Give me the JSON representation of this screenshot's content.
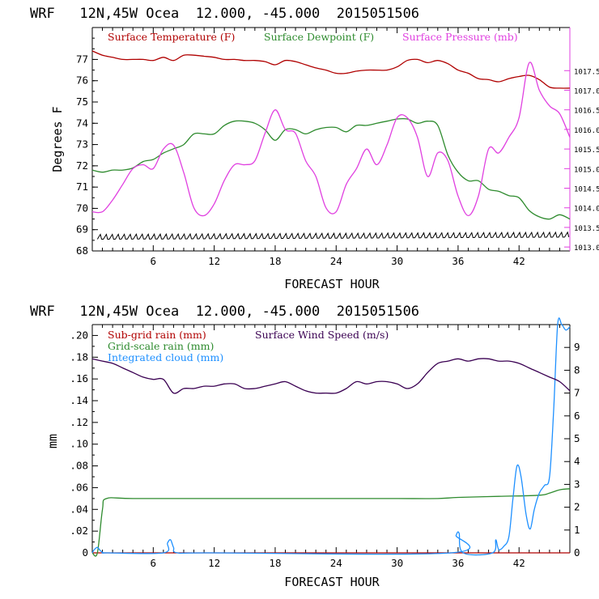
{
  "chart_data": [
    {
      "type": "line",
      "title": "WRF   12N,45W Ocea  12.000, -45.000  2015051506",
      "xlabel": "FORECAST HOUR",
      "ylabel": "Degrees F",
      "xlim": [
        0,
        47
      ],
      "ylim": [
        68,
        78.5
      ],
      "xticks": [
        6,
        12,
        18,
        24,
        30,
        36,
        42
      ],
      "yticks": [
        68,
        69,
        70,
        71,
        72,
        73,
        74,
        75,
        76,
        77
      ],
      "y2label": "",
      "y2lim": [
        1012.9,
        1018.6
      ],
      "y2ticks": [
        "1013.0",
        "1013.5",
        "1014.0",
        "1014.5",
        "1015.0",
        "1015.5",
        "1016.0",
        "1016.5",
        "1017.0",
        "1017.5"
      ],
      "legend_placement": "top",
      "series": [
        {
          "name": "Surface Temperature (F)",
          "color": "#b00000",
          "axis": "left",
          "x": [
            0,
            1,
            2,
            3,
            4,
            5,
            6,
            7,
            8,
            9,
            10,
            11,
            12,
            13,
            14,
            15,
            16,
            17,
            18,
            19,
            20,
            21,
            22,
            23,
            24,
            25,
            26,
            27,
            28,
            29,
            30,
            31,
            32,
            33,
            34,
            35,
            36,
            37,
            38,
            39,
            40,
            41,
            42,
            43,
            44,
            45,
            46,
            47
          ],
          "y": [
            77.4,
            77.2,
            77.1,
            77.0,
            77.0,
            77.0,
            76.95,
            77.1,
            76.95,
            77.2,
            77.2,
            77.15,
            77.1,
            77.0,
            77.0,
            76.95,
            76.95,
            76.9,
            76.75,
            76.95,
            76.9,
            76.75,
            76.6,
            76.5,
            76.35,
            76.35,
            76.45,
            76.5,
            76.5,
            76.5,
            76.65,
            76.95,
            77.0,
            76.85,
            76.95,
            76.8,
            76.5,
            76.35,
            76.1,
            76.05,
            75.95,
            76.1,
            76.2,
            76.25,
            76.05,
            75.7,
            75.65,
            75.65
          ]
        },
        {
          "name": "Surface Dewpoint (F)",
          "color": "#2e8b2e",
          "axis": "left",
          "x": [
            0,
            1,
            2,
            3,
            4,
            5,
            6,
            7,
            8,
            9,
            10,
            11,
            12,
            13,
            14,
            15,
            16,
            17,
            18,
            19,
            20,
            21,
            22,
            23,
            24,
            25,
            26,
            27,
            28,
            29,
            30,
            31,
            32,
            33,
            34,
            35,
            36,
            37,
            38,
            39,
            40,
            41,
            42,
            43,
            44,
            45,
            46,
            47
          ],
          "y": [
            71.8,
            71.7,
            71.8,
            71.8,
            71.9,
            72.2,
            72.3,
            72.6,
            72.8,
            73.0,
            73.5,
            73.5,
            73.5,
            73.9,
            74.1,
            74.1,
            74.0,
            73.7,
            73.2,
            73.7,
            73.7,
            73.5,
            73.7,
            73.8,
            73.8,
            73.6,
            73.9,
            73.9,
            74.0,
            74.1,
            74.2,
            74.2,
            74.0,
            74.1,
            73.9,
            72.5,
            71.7,
            71.3,
            71.3,
            70.9,
            70.8,
            70.6,
            70.5,
            69.9,
            69.6,
            69.5,
            69.7,
            69.5
          ]
        },
        {
          "name": "Surface Pressure (mb)",
          "color": "#e040e0",
          "axis": "right",
          "x": [
            0,
            1,
            2,
            3,
            4,
            5,
            6,
            7,
            8,
            9,
            10,
            11,
            12,
            13,
            14,
            15,
            16,
            17,
            18,
            19,
            20,
            21,
            22,
            23,
            24,
            25,
            26,
            27,
            28,
            29,
            30,
            31,
            32,
            33,
            34,
            35,
            36,
            37,
            38,
            39,
            40,
            41,
            42,
            43,
            44,
            45,
            46,
            47
          ],
          "y": [
            1013.9,
            1013.9,
            1014.2,
            1014.6,
            1015.0,
            1015.1,
            1015.0,
            1015.5,
            1015.6,
            1014.9,
            1014.0,
            1013.8,
            1014.1,
            1014.7,
            1015.1,
            1015.1,
            1015.2,
            1015.9,
            1016.5,
            1016.0,
            1015.9,
            1015.2,
            1014.8,
            1014.0,
            1013.9,
            1014.6,
            1015.0,
            1015.5,
            1015.1,
            1015.6,
            1016.3,
            1016.3,
            1015.8,
            1014.8,
            1015.4,
            1015.2,
            1014.3,
            1013.8,
            1014.3,
            1015.5,
            1015.4,
            1015.8,
            1016.3,
            1017.7,
            1017.0,
            1016.6,
            1016.4,
            1015.8
          ]
        },
        {
          "name": "",
          "color": "#000000",
          "axis": "left",
          "style": "barbs",
          "x": [
            0.5,
            47
          ],
          "y": [
            68.55,
            68.65
          ]
        }
      ]
    },
    {
      "type": "line",
      "title": "WRF   12N,45W Ocea  12.000, -45.000  2015051506",
      "xlabel": "FORECAST HOUR",
      "ylabel": "mm",
      "xlim": [
        0,
        47
      ],
      "ylim": [
        0,
        0.21
      ],
      "xticks": [
        6,
        12,
        18,
        24,
        30,
        36,
        42
      ],
      "yticks": [
        ".20",
        ".18",
        ".16",
        ".14",
        ".12",
        ".10",
        ".08",
        ".06",
        ".04",
        ".02",
        "0"
      ],
      "y2lim": [
        0,
        10
      ],
      "y2ticks": [
        "9",
        "8",
        "7",
        "6",
        "5",
        "4",
        "3",
        "2",
        "1",
        "0"
      ],
      "legend_placement": "top-left",
      "series": [
        {
          "name": "Sub-grid rain (mm)",
          "color": "#b00000",
          "axis": "left",
          "x": [
            0,
            47
          ],
          "y": [
            0,
            0
          ]
        },
        {
          "name": "Grid-scale rain (mm)",
          "color": "#2e8b2e",
          "axis": "left",
          "x": [
            0,
            0.5,
            1.0,
            1.4,
            4,
            12,
            18,
            24,
            30,
            34,
            36,
            40,
            44,
            45,
            46,
            47
          ],
          "y": [
            0,
            0,
            0.04,
            0.05,
            0.05,
            0.05,
            0.05,
            0.05,
            0.05,
            0.05,
            0.051,
            0.052,
            0.053,
            0.055,
            0.058,
            0.059
          ]
        },
        {
          "name": "Integrated cloud (mm)",
          "color": "#1e90ff",
          "axis": "left",
          "x": [
            0,
            0.2,
            0.5,
            0.8,
            1.1,
            1.5,
            7,
            7.4,
            7.7,
            8.0,
            8.4,
            12,
            35.3,
            35.8,
            36.1,
            36.5,
            39.4,
            39.7,
            40.0,
            40.5,
            41.0,
            41.4,
            41.8,
            42.2,
            42.7,
            43.1,
            43.5,
            44,
            44.5,
            45,
            45.4,
            45.8,
            46.2,
            46.6,
            47
          ],
          "y": [
            0,
            0.003,
            0.005,
            0.002,
            0,
            0,
            0,
            0.009,
            0.012,
            0.005,
            0,
            0,
            0,
            0.016,
            0.018,
            0,
            0,
            0.012,
            0.003,
            0.006,
            0.015,
            0.05,
            0.08,
            0.07,
            0.035,
            0.022,
            0.04,
            0.055,
            0.062,
            0.07,
            0.13,
            0.21,
            0.21,
            0.205,
            0.208
          ]
        },
        {
          "name": "Surface Wind Speed (m/s)",
          "color": "#3a0052",
          "axis": "right",
          "x": [
            0,
            1,
            2,
            3,
            4,
            5,
            6,
            7,
            8,
            9,
            10,
            11,
            12,
            13,
            14,
            15,
            16,
            17,
            18,
            19,
            20,
            21,
            22,
            23,
            24,
            25,
            26,
            27,
            28,
            29,
            30,
            31,
            32,
            33,
            34,
            35,
            36,
            37,
            38,
            39,
            40,
            41,
            42,
            43,
            44,
            45,
            46,
            47
          ],
          "y": [
            8.5,
            8.4,
            8.3,
            8.1,
            7.9,
            7.7,
            7.6,
            7.6,
            7.0,
            7.2,
            7.2,
            7.3,
            7.3,
            7.4,
            7.4,
            7.2,
            7.2,
            7.3,
            7.4,
            7.5,
            7.3,
            7.1,
            7.0,
            7.0,
            7.0,
            7.2,
            7.5,
            7.4,
            7.5,
            7.5,
            7.4,
            7.2,
            7.4,
            7.9,
            8.3,
            8.4,
            8.5,
            8.4,
            8.5,
            8.5,
            8.4,
            8.4,
            8.3,
            8.1,
            7.9,
            7.7,
            7.5,
            7.1
          ]
        }
      ]
    }
  ]
}
